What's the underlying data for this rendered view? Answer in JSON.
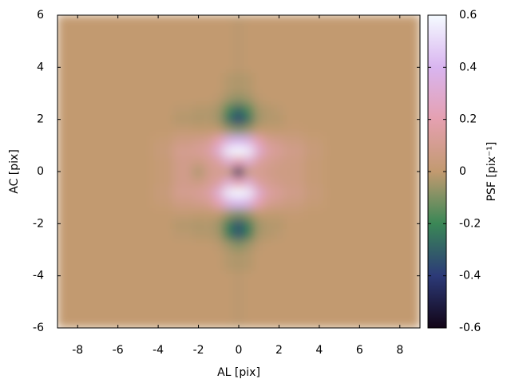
{
  "chart_data": {
    "type": "heatmap",
    "xlabel": "AL [pix]",
    "ylabel": "AC [pix]",
    "colorbar_label": "PSF [pix⁻¹]",
    "x_edges": [
      -9,
      -4.25,
      -3.25,
      -2.25,
      -1.75,
      -1.25,
      -0.75,
      -0.25,
      0.25,
      0.75,
      1.25,
      1.75,
      2.25,
      3.25,
      4.25,
      9
    ],
    "y_edges": [
      -6,
      -3.8,
      -3.0,
      -2.6,
      -2.2,
      -1.8,
      -1.4,
      -1.0,
      -0.6,
      -0.2,
      0.2,
      0.6,
      1.0,
      1.4,
      1.8,
      2.2,
      2.6,
      3.0,
      3.8,
      6
    ],
    "values": [
      [
        0,
        0,
        0,
        0,
        0,
        0,
        0,
        -0.01,
        0,
        0,
        0,
        0,
        0,
        0,
        0
      ],
      [
        0,
        0,
        0,
        0,
        0,
        0,
        -0.02,
        -0.03,
        -0.02,
        0,
        0,
        0,
        0,
        0,
        0
      ],
      [
        0,
        0,
        0,
        0,
        0,
        -0.01,
        -0.05,
        -0.1,
        -0.05,
        -0.01,
        0,
        0,
        0,
        0,
        0
      ],
      [
        0,
        0,
        -0.01,
        -0.02,
        -0.02,
        -0.04,
        -0.22,
        -0.34,
        -0.22,
        -0.04,
        -0.02,
        -0.01,
        0,
        0,
        0
      ],
      [
        0,
        0,
        -0.02,
        -0.03,
        -0.02,
        -0.05,
        -0.22,
        -0.34,
        -0.22,
        -0.05,
        -0.02,
        -0.02,
        0,
        0,
        0
      ],
      [
        0,
        0,
        0.01,
        0,
        0,
        0,
        -0.05,
        -0.1,
        -0.05,
        0,
        0,
        0,
        0.01,
        0,
        0
      ],
      [
        0,
        0.02,
        0.06,
        0.08,
        0.1,
        0.2,
        0.35,
        0.4,
        0.35,
        0.2,
        0.1,
        0.08,
        0.05,
        0.02,
        0
      ],
      [
        0,
        0.03,
        0.1,
        0.12,
        0.15,
        0.3,
        0.55,
        0.6,
        0.55,
        0.3,
        0.15,
        0.12,
        0.08,
        0.03,
        0
      ],
      [
        0,
        0.02,
        0.08,
        0.06,
        0.1,
        0.15,
        0.3,
        0.2,
        0.3,
        0.15,
        0.1,
        0.08,
        0.06,
        0.02,
        0
      ],
      [
        0,
        0.02,
        0.08,
        -0.03,
        0.08,
        0.1,
        0.05,
        -0.45,
        0.05,
        0.1,
        0.08,
        0.06,
        0.06,
        0.02,
        0
      ],
      [
        0,
        0.02,
        0.08,
        0.06,
        0.1,
        0.15,
        0.3,
        0.2,
        0.3,
        0.15,
        0.1,
        0.08,
        0.06,
        0.02,
        0
      ],
      [
        0,
        0.03,
        0.1,
        0.12,
        0.15,
        0.3,
        0.55,
        0.6,
        0.55,
        0.3,
        0.15,
        0.12,
        0.08,
        0.03,
        0
      ],
      [
        0,
        0.02,
        0.06,
        0.08,
        0.1,
        0.2,
        0.35,
        0.4,
        0.35,
        0.2,
        0.1,
        0.08,
        0.05,
        0.02,
        0
      ],
      [
        0,
        0,
        0.01,
        0,
        0,
        0,
        -0.05,
        -0.1,
        -0.05,
        0,
        0,
        0,
        0.01,
        0,
        0
      ],
      [
        0,
        0,
        -0.02,
        -0.03,
        -0.02,
        -0.05,
        -0.25,
        -0.38,
        -0.25,
        -0.05,
        -0.02,
        -0.02,
        0,
        0,
        0
      ],
      [
        0,
        0,
        -0.01,
        -0.02,
        -0.02,
        -0.04,
        -0.18,
        -0.28,
        -0.18,
        -0.04,
        -0.02,
        -0.01,
        0,
        0,
        0
      ],
      [
        0,
        0,
        0,
        0,
        0,
        -0.01,
        -0.05,
        -0.08,
        -0.05,
        -0.01,
        0,
        0,
        0,
        0,
        0
      ],
      [
        0,
        0,
        0,
        0,
        0,
        0,
        -0.02,
        -0.03,
        -0.02,
        0,
        0,
        0,
        0,
        0,
        0
      ],
      [
        0,
        0,
        0,
        0,
        0,
        0,
        0,
        -0.01,
        0,
        0,
        0,
        0,
        0,
        0,
        0
      ]
    ],
    "xlim": [
      -9,
      9
    ],
    "ylim": [
      -6,
      6
    ],
    "clim": [
      -0.6,
      0.6
    ],
    "xticks": [
      -8,
      -6,
      -4,
      -2,
      0,
      2,
      4,
      6,
      8
    ],
    "yticks": [
      -6,
      -4,
      -2,
      0,
      2,
      4,
      6
    ],
    "cticks": [
      -0.6,
      -0.4,
      -0.2,
      0,
      0.2,
      0.4,
      0.6
    ],
    "colormap": [
      "#120416",
      "#2c3a78",
      "#3a8756",
      "#c29a70",
      "#e5a0b0",
      "#d9b5f0",
      "#f5fbff"
    ]
  }
}
